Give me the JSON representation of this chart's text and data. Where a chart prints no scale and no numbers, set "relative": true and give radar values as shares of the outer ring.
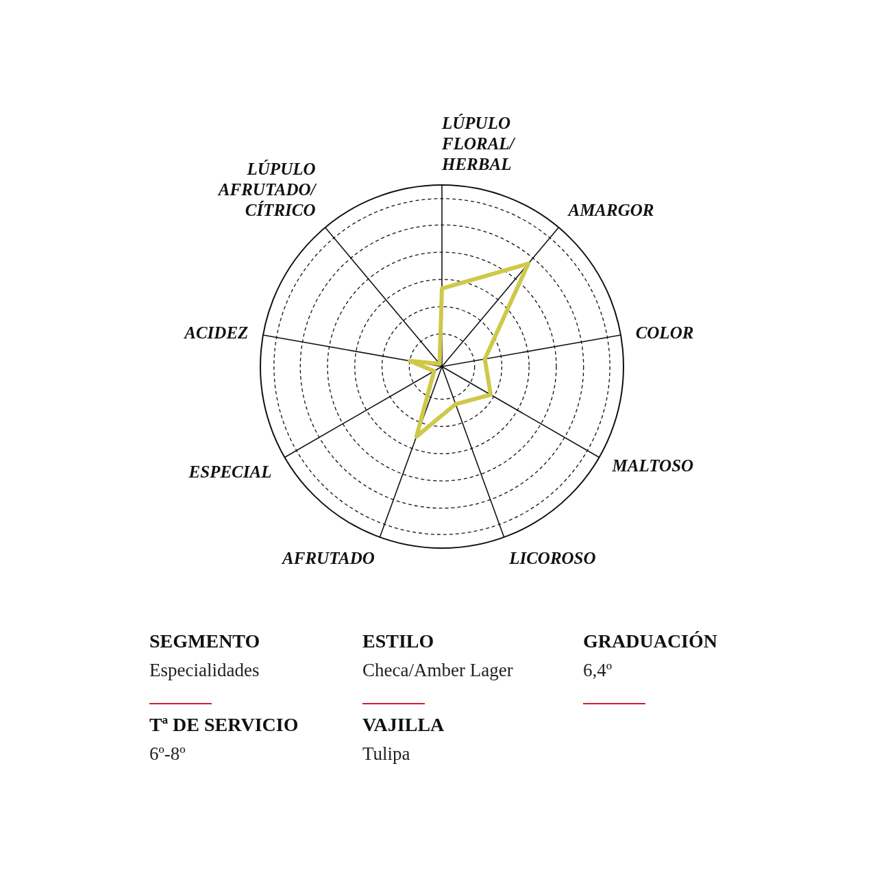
{
  "chart_data": [
    {
      "type": "radar",
      "relative": true,
      "categories": [
        "LÚPULO FLORAL/ HERBAL",
        "AMARGOR",
        "COLOR",
        "MALTOSO",
        "LICOROSO",
        "AFRUTADO",
        "ESPECIAL",
        "ACIDEZ",
        "LÚPULO AFRUTADO/ CÍTRICO"
      ],
      "series": [
        {
          "color": "#cfc84a",
          "values": [
            0.43,
            0.74,
            0.24,
            0.31,
            0.22,
            0.41,
            0.05,
            0.18,
            0.02
          ]
        }
      ],
      "grid": true,
      "marker": "none",
      "line_style": "solid"
    },
    {
      "type": "other",
      "annotations": [
        "SEGMENTO",
        "Especialidades",
        "ESTILO",
        "Checa/Amber Lager",
        "GRADUACIÓN",
        "6,4º",
        "Tª DE SERVICIO",
        "6º-8º",
        "VAJILLA",
        "Tulipa"
      ]
    }
  ]
}
